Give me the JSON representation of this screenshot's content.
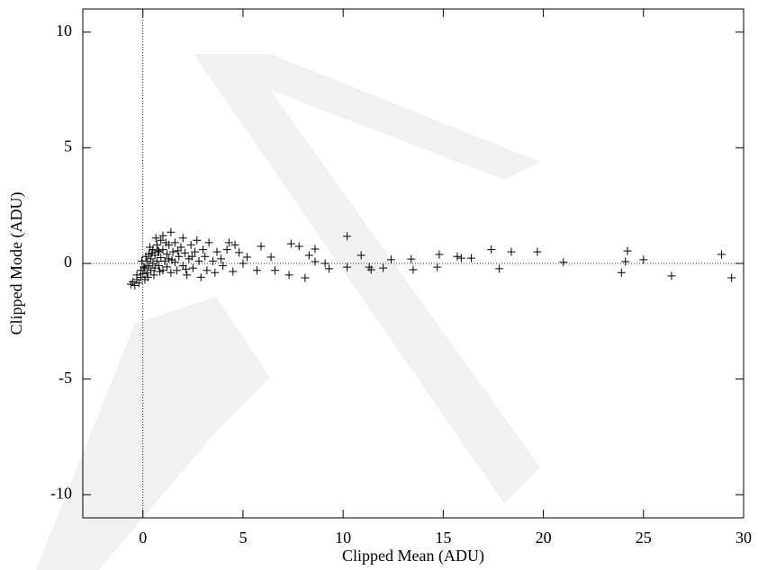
{
  "chart_data": {
    "type": "scatter",
    "x_label": "Clipped Mean (ADU)",
    "y_label": "Clipped Mode (ADU)",
    "marker": "+",
    "color": "#000000",
    "zero_lines": true,
    "xlim": [
      -3,
      30
    ],
    "xticks": [
      0,
      5,
      10,
      15,
      20,
      25,
      30
    ],
    "ylim": [
      -11,
      11
    ],
    "yticks": [
      -10,
      -5,
      0,
      5,
      10
    ],
    "x": [
      10.2,
      24.2,
      28.9,
      19.7,
      18.4,
      17.4,
      21.0,
      25.0,
      23.9,
      24.1,
      26.4,
      29.4,
      17.8,
      16.4,
      15.7,
      15.9,
      14.8,
      14.7,
      13.4,
      13.5,
      12.4,
      12.0,
      11.3,
      11.4,
      10.9,
      10.2,
      9.1,
      9.3,
      8.1,
      8.6,
      8.3,
      7.3,
      7.4,
      7.8,
      8.6,
      6.6,
      6.4,
      5.9,
      5.7,
      5.2,
      5.0,
      4.6,
      4.5,
      4.8,
      -0.6,
      -0.5,
      -0.4,
      -0.3,
      -0.2,
      -0.3,
      -0.1,
      -0.1,
      0,
      0.1,
      0.1,
      0.2,
      0.2,
      0.3,
      0.3,
      0.4,
      0.4,
      0.5,
      0.5,
      0.6,
      0.6,
      0.7,
      0.7,
      0.8,
      0.8,
      0.9,
      0.9,
      1.0,
      1.0,
      1.0,
      1.1,
      1.2,
      1.2,
      1.3,
      1.3,
      1.4,
      1.4,
      1.5,
      1.6,
      1.6,
      1.7,
      1.8,
      1.9,
      2.0,
      2.0,
      2.1,
      2.2,
      2.3,
      2.4,
      2.5,
      2.6,
      2.7,
      2.8,
      2.9,
      3.0,
      3.1,
      3.2,
      3.3,
      3.5,
      3.6,
      3.7,
      3.9,
      4.0,
      4.2,
      4.3,
      0.15,
      0.35,
      0.55,
      0.75,
      0.85,
      1.15,
      1.45,
      0.25,
      0.45,
      0.65,
      -0.05,
      0.05,
      1.75,
      2.15,
      2.45
    ],
    "values": [
      1.17,
      0.54,
      0.39,
      0.5,
      0.5,
      0.6,
      0.05,
      0.16,
      -0.4,
      0.08,
      -0.54,
      -0.62,
      -0.23,
      0.23,
      0.3,
      0.23,
      0.39,
      -0.16,
      0.19,
      -0.27,
      0.16,
      -0.2,
      -0.16,
      -0.27,
      0.35,
      -0.16,
      0,
      -0.23,
      -0.62,
      0.08,
      0.35,
      -0.5,
      0.85,
      0.74,
      0.62,
      -0.3,
      0.27,
      0.74,
      -0.3,
      0.27,
      0,
      0.8,
      -0.35,
      0.47,
      -0.9,
      -0.8,
      -0.95,
      -0.7,
      -0.85,
      -0.5,
      -0.6,
      -0.3,
      -0.45,
      -0.7,
      -0.2,
      -0.4,
      0.1,
      -0.1,
      0.4,
      -0.3,
      0.2,
      0.6,
      0,
      -0.2,
      0.35,
      0.8,
      0.1,
      -0.1,
      0.5,
      1.0,
      0.25,
      -0.3,
      0.6,
      1.2,
      0.1,
      0.4,
      -0.15,
      0.8,
      0.2,
      1.35,
      -0.4,
      0.5,
      0.05,
      0.9,
      -0.3,
      0.3,
      0.7,
      -0.1,
      1.1,
      0.45,
      -0.5,
      0.2,
      0.8,
      -0.2,
      0.5,
      1.0,
      0.1,
      -0.6,
      0.6,
      0.3,
      -0.3,
      0.9,
      0.1,
      -0.4,
      0.5,
      0.2,
      -0.1,
      0.6,
      0.9,
      0.3,
      0.7,
      -0.5,
      0.55,
      -0.35,
      0.9,
      0.15,
      -0.6,
      0.45,
      1.1,
      0.1,
      -0.15,
      0.55,
      -0.25,
      0.3
    ]
  }
}
